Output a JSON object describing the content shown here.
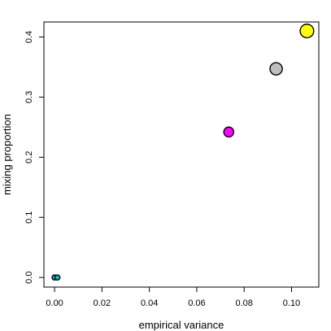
{
  "chart_data": {
    "type": "scatter",
    "xlabel": "empirical variance",
    "ylabel": "mixing proportion",
    "xlim": [
      -0.0045,
      0.1115
    ],
    "ylim": [
      -0.016,
      0.425
    ],
    "x_ticks": [
      0.0,
      0.02,
      0.04,
      0.06,
      0.08,
      0.1
    ],
    "x_tick_labels": [
      "0.00",
      "0.02",
      "0.04",
      "0.06",
      "0.08",
      "0.10"
    ],
    "y_ticks": [
      0.0,
      0.1,
      0.2,
      0.3,
      0.4
    ],
    "y_tick_labels": [
      "0.0",
      "0.1",
      "0.2",
      "0.3",
      "0.4"
    ],
    "grid": false,
    "legend": "none",
    "points": [
      {
        "x": 0.0,
        "y": 0.0,
        "size": 0.1,
        "color": "#00BFC4"
      },
      {
        "x": 0.0012,
        "y": 0.0,
        "size": 0.1,
        "color": "#00BFC4"
      },
      {
        "x": 0.0735,
        "y": 0.242,
        "size": 0.55,
        "color": "#FF00FF"
      },
      {
        "x": 0.0935,
        "y": 0.347,
        "size": 0.78,
        "color": "#BEBEBE"
      },
      {
        "x": 0.1065,
        "y": 0.41,
        "size": 0.9,
        "color": "#FFFF00"
      }
    ]
  }
}
